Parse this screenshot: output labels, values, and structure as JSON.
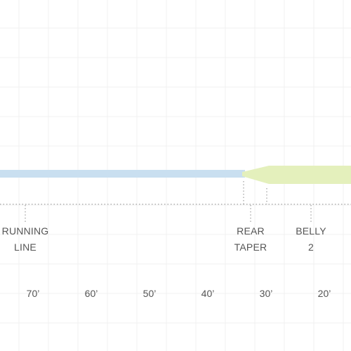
{
  "colors": {
    "background": "#ffffff",
    "grid": "#f1f1f1",
    "running_line": "#c9dff0",
    "head": "#e4f0bc",
    "guide": "#8a8a8a",
    "text": "#555555"
  },
  "segments": [
    {
      "line1": "RUNNING",
      "line2": "LINE"
    },
    {
      "line1": "REAR",
      "line2": "TAPER"
    },
    {
      "line1": "BELLY",
      "line2": "2"
    }
  ],
  "distances": [
    "70’",
    "60’",
    "50’",
    "40’",
    "30’",
    "20’"
  ]
}
